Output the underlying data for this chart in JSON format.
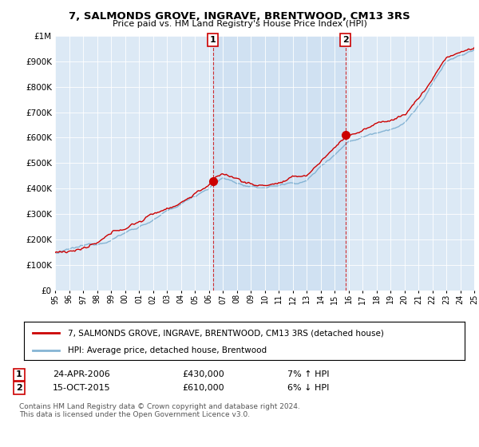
{
  "title": "7, SALMONDS GROVE, INGRAVE, BRENTWOOD, CM13 3RS",
  "subtitle": "Price paid vs. HM Land Registry's House Price Index (HPI)",
  "ylim": [
    0,
    1000000
  ],
  "yticks": [
    0,
    100000,
    200000,
    300000,
    400000,
    500000,
    600000,
    700000,
    800000,
    900000,
    1000000
  ],
  "sale1_year": 2006.29,
  "sale1_price": 430000,
  "sale2_year": 2015.79,
  "sale2_price": 610000,
  "property_color": "#cc0000",
  "hpi_color": "#85b4d4",
  "highlight_color": "#cce0f0",
  "background_color": "#dce9f5",
  "legend_property": "7, SALMONDS GROVE, INGRAVE, BRENTWOOD, CM13 3RS (detached house)",
  "legend_hpi": "HPI: Average price, detached house, Brentwood",
  "sale1_date": "24-APR-2006",
  "sale1_hpi": "£430,000",
  "sale1_pct": "7% ↑ HPI",
  "sale2_date": "15-OCT-2015",
  "sale2_hpi": "£610,000",
  "sale2_pct": "6% ↓ HPI",
  "footnote1": "Contains HM Land Registry data © Crown copyright and database right 2024.",
  "footnote2": "This data is licensed under the Open Government Licence v3.0.",
  "xmin": 1995,
  "xmax": 2025
}
